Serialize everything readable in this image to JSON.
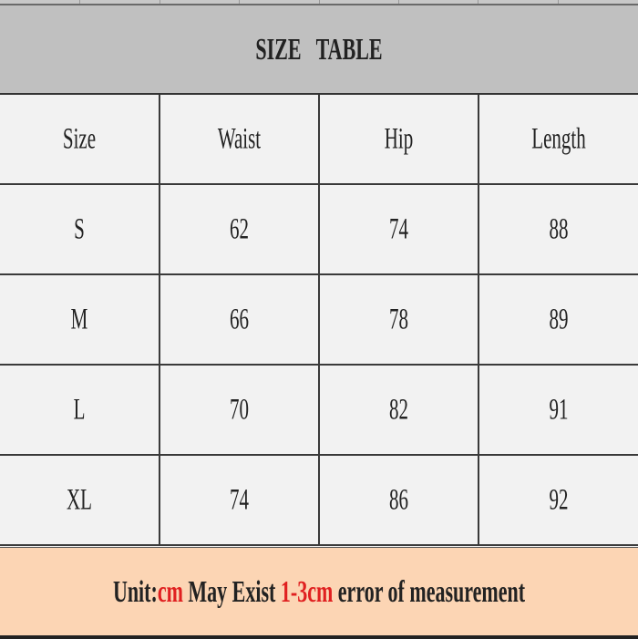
{
  "title": "SIZE   TABLE",
  "table": {
    "headers": [
      "Size",
      "Waist",
      "Hip",
      "Length"
    ],
    "rows": [
      [
        "S",
        "62",
        "74",
        "88"
      ],
      [
        "M",
        "66",
        "78",
        "89"
      ],
      [
        "L",
        "70",
        "82",
        "91"
      ],
      [
        "XL",
        "74",
        "86",
        "92"
      ]
    ]
  },
  "footer": {
    "part1": "Unit:",
    "unit": "cm",
    "part2": " May Exist ",
    "range": "1-3cm",
    "part3": " error of measurement"
  },
  "colors": {
    "title_bg": "#c0c0c0",
    "footer_bg": "#fcd5b4",
    "highlight": "#e02020"
  }
}
